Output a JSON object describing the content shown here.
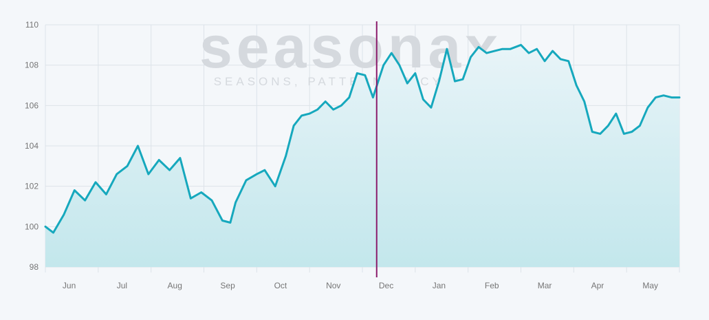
{
  "watermark": {
    "brand": "seasonax",
    "tagline": "SEASONS, PATTERNS & CYCLES"
  },
  "colors": {
    "line": "#16a8bd",
    "area_top": "#e8f4f8",
    "area_bottom": "#c3e7ec",
    "marker": "#8a1a6a",
    "grid": "#dde3e9",
    "tick_label": "#757575",
    "watermark": "#d5d9de"
  },
  "chart_data": {
    "type": "area",
    "title": "",
    "xlabel": "",
    "ylabel": "",
    "ylim": [
      98,
      110
    ],
    "yticks": [
      98,
      100,
      102,
      104,
      106,
      108,
      110
    ],
    "month_labels": [
      "Jun",
      "Jul",
      "Aug",
      "Sep",
      "Oct",
      "Nov",
      "Dec",
      "Jan",
      "Feb",
      "Mar",
      "Apr",
      "May"
    ],
    "x_range": [
      0,
      12
    ],
    "marker_x": 6.27,
    "grid": true,
    "legend": "none",
    "series": [
      {
        "x": [
          0,
          0.15,
          0.35,
          0.55,
          0.75,
          0.95,
          1.15,
          1.35,
          1.55,
          1.75,
          1.95,
          2.15,
          2.35,
          2.55,
          2.75,
          2.95,
          3.15,
          3.35,
          3.5,
          3.6,
          3.8,
          4.0,
          4.15,
          4.35,
          4.55,
          4.7,
          4.85,
          5.0,
          5.15,
          5.3,
          5.45,
          5.6,
          5.75,
          5.9,
          6.05,
          6.2,
          6.3,
          6.4,
          6.55,
          6.7,
          6.85,
          7.0,
          7.15,
          7.3,
          7.45,
          7.6,
          7.75,
          7.9,
          8.05,
          8.2,
          8.35,
          8.5,
          8.65,
          8.8,
          9.0,
          9.15,
          9.3,
          9.45,
          9.6,
          9.75,
          9.9,
          10.05,
          10.2,
          10.35,
          10.5,
          10.65,
          10.8,
          10.95,
          11.1,
          11.25,
          11.4,
          11.55,
          11.7,
          11.85,
          12.0
        ],
        "values": [
          100.0,
          99.7,
          100.6,
          101.8,
          101.3,
          102.2,
          101.6,
          102.6,
          103.0,
          104.0,
          102.6,
          103.3,
          102.8,
          103.4,
          101.4,
          101.7,
          101.3,
          100.3,
          100.2,
          101.2,
          102.3,
          102.6,
          102.8,
          102.0,
          103.5,
          105.0,
          105.5,
          105.6,
          105.8,
          106.2,
          105.8,
          106.0,
          106.4,
          107.6,
          107.5,
          106.4,
          107.2,
          108.0,
          108.6,
          108.0,
          107.1,
          107.6,
          106.3,
          105.9,
          107.2,
          108.8,
          107.2,
          107.3,
          108.4,
          108.9,
          108.6,
          108.7,
          108.8,
          108.8,
          109.0,
          108.6,
          108.8,
          108.2,
          108.7,
          108.3,
          108.2,
          107.0,
          106.2,
          104.7,
          104.6,
          105.0,
          105.6,
          104.6,
          104.7,
          105.0,
          105.9,
          106.4,
          106.5,
          106.4,
          106.4
        ]
      }
    ]
  }
}
